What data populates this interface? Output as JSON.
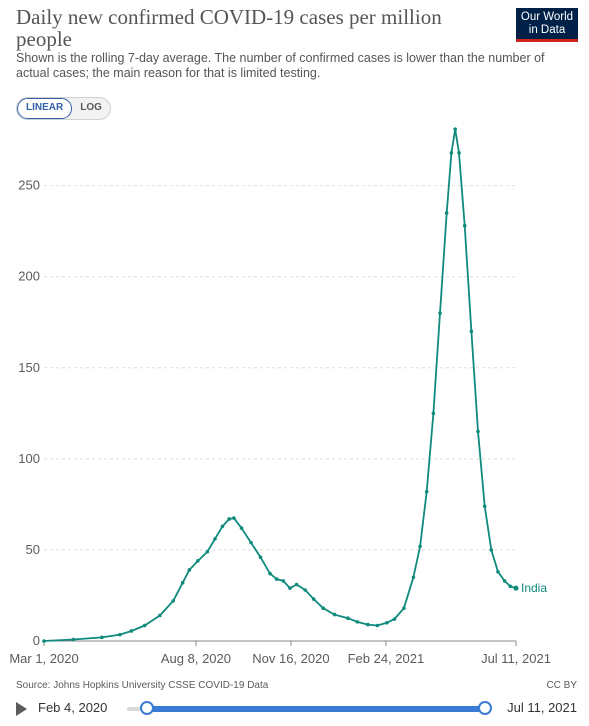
{
  "header": {
    "title": "Daily new confirmed COVID-19 cases per million people",
    "subtitle": "Shown is the rolling 7-day average. The number of confirmed cases is lower than the number of actual cases; the main reason for that is limited testing.",
    "logo": "Our World in Data"
  },
  "controls": {
    "linear_label": "LINEAR",
    "log_label": "LOG",
    "active": "linear"
  },
  "footer": {
    "source": "Source: Johns Hopkins University CSSE COVID-19 Data",
    "license": "CC BY"
  },
  "timeline": {
    "start_label": "Feb 4, 2020",
    "end_label": "Jul 11, 2021"
  },
  "colors": {
    "series": "#0f8a7c",
    "grid": "#dddddd",
    "axis": "#5b5b5b"
  },
  "chart_data": {
    "type": "line",
    "title": "Daily new confirmed COVID-19 cases per million people",
    "xlabel": "",
    "ylabel": "",
    "ylim": [
      0,
      280
    ],
    "yticks": [
      0,
      50,
      100,
      150,
      200,
      250
    ],
    "xlim": [
      "2020-03-01",
      "2021-07-11"
    ],
    "xticks": [
      {
        "date": "2020-03-01",
        "label": "Mar 1, 2020"
      },
      {
        "date": "2020-08-08",
        "label": "Aug 8, 2020"
      },
      {
        "date": "2020-11-16",
        "label": "Nov 16, 2020"
      },
      {
        "date": "2021-02-24",
        "label": "Feb 24, 2021"
      },
      {
        "date": "2021-07-11",
        "label": "Jul 11, 2021"
      }
    ],
    "grid": true,
    "legend": "end-of-line",
    "series": [
      {
        "name": "India",
        "points": [
          [
            "2020-03-01",
            0
          ],
          [
            "2020-04-01",
            0.8
          ],
          [
            "2020-05-01",
            2
          ],
          [
            "2020-05-20",
            3.5
          ],
          [
            "2020-06-01",
            5.5
          ],
          [
            "2020-06-15",
            8.5
          ],
          [
            "2020-07-01",
            14
          ],
          [
            "2020-07-15",
            22
          ],
          [
            "2020-07-25",
            32
          ],
          [
            "2020-08-01",
            39
          ],
          [
            "2020-08-10",
            44
          ],
          [
            "2020-08-20",
            49
          ],
          [
            "2020-08-28",
            56
          ],
          [
            "2020-09-05",
            63
          ],
          [
            "2020-09-12",
            67
          ],
          [
            "2020-09-17",
            67.5
          ],
          [
            "2020-09-25",
            62
          ],
          [
            "2020-10-05",
            54
          ],
          [
            "2020-10-15",
            46
          ],
          [
            "2020-10-25",
            37
          ],
          [
            "2020-11-01",
            34
          ],
          [
            "2020-11-08",
            33
          ],
          [
            "2020-11-15",
            29
          ],
          [
            "2020-11-22",
            31
          ],
          [
            "2020-12-01",
            28
          ],
          [
            "2020-12-10",
            23
          ],
          [
            "2020-12-20",
            18
          ],
          [
            "2021-01-01",
            14.5
          ],
          [
            "2021-01-15",
            12.5
          ],
          [
            "2021-01-25",
            10.5
          ],
          [
            "2021-02-05",
            9
          ],
          [
            "2021-02-15",
            8.5
          ],
          [
            "2021-02-25",
            10
          ],
          [
            "2021-03-05",
            12
          ],
          [
            "2021-03-15",
            18
          ],
          [
            "2021-03-25",
            35
          ],
          [
            "2021-04-01",
            52
          ],
          [
            "2021-04-08",
            82
          ],
          [
            "2021-04-15",
            125
          ],
          [
            "2021-04-22",
            180
          ],
          [
            "2021-04-29",
            235
          ],
          [
            "2021-05-04",
            268
          ],
          [
            "2021-05-08",
            281
          ],
          [
            "2021-05-12",
            268
          ],
          [
            "2021-05-18",
            228
          ],
          [
            "2021-05-25",
            170
          ],
          [
            "2021-06-01",
            115
          ],
          [
            "2021-06-08",
            74
          ],
          [
            "2021-06-15",
            50
          ],
          [
            "2021-06-22",
            38
          ],
          [
            "2021-06-29",
            33
          ],
          [
            "2021-07-05",
            30
          ],
          [
            "2021-07-11",
            29
          ]
        ]
      }
    ]
  }
}
